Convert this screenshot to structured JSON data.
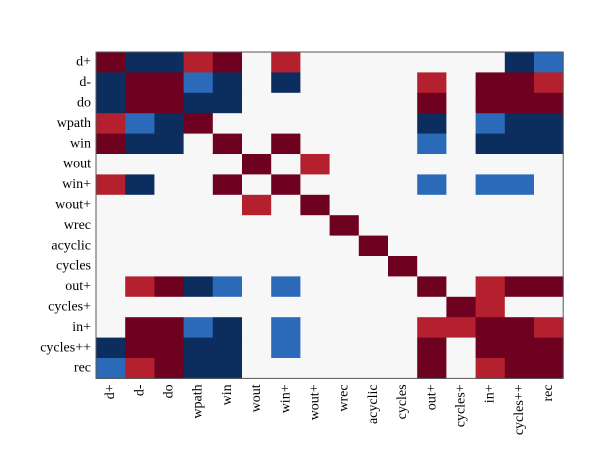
{
  "chart_data": {
    "type": "heatmap",
    "title": "",
    "xlabel": "",
    "ylabel": "",
    "grid": false,
    "legend": "none",
    "rows": [
      "d+",
      "d-",
      "do",
      "wpath",
      "win",
      "wout",
      "win+",
      "wout+",
      "wrec",
      "acyclic",
      "cycles",
      "out+",
      "cycles+",
      "in+",
      "cycles++",
      "rec"
    ],
    "cols": [
      "d+",
      "d-",
      "do",
      "wpath",
      "win",
      "wout",
      "win+",
      "wout+",
      "wrec",
      "acyclic",
      "cycles",
      "out+",
      "cycles+",
      "in+",
      "cycles++",
      "rec"
    ],
    "colors": {
      "dark_red": "#6e0020",
      "red": "#b4202e",
      "blue": "#2a6ab8",
      "dark_blue": "#0c2e5e",
      "empty": "#f7f7f7"
    },
    "values": [
      [
        2,
        -2,
        -2,
        1,
        2,
        0,
        1,
        0,
        0,
        0,
        0,
        0,
        0,
        0,
        -2,
        -1
      ],
      [
        -2,
        2,
        2,
        -1,
        -2,
        0,
        -2,
        0,
        0,
        0,
        0,
        1,
        0,
        2,
        2,
        1
      ],
      [
        -2,
        2,
        2,
        -2,
        -2,
        0,
        0,
        0,
        0,
        0,
        0,
        2,
        0,
        2,
        2,
        2
      ],
      [
        1,
        -1,
        -2,
        2,
        0,
        0,
        0,
        0,
        0,
        0,
        0,
        -2,
        0,
        -1,
        -2,
        -2
      ],
      [
        2,
        -2,
        -2,
        0,
        2,
        0,
        2,
        0,
        0,
        0,
        0,
        -1,
        0,
        -2,
        -2,
        -2
      ],
      [
        0,
        0,
        0,
        0,
        0,
        2,
        0,
        1,
        0,
        0,
        0,
        0,
        0,
        0,
        0,
        0
      ],
      [
        1,
        -2,
        0,
        0,
        2,
        0,
        2,
        0,
        0,
        0,
        0,
        -1,
        0,
        -1,
        -1,
        0
      ],
      [
        0,
        0,
        0,
        0,
        0,
        1,
        0,
        2,
        0,
        0,
        0,
        0,
        0,
        0,
        0,
        0
      ],
      [
        0,
        0,
        0,
        0,
        0,
        0,
        0,
        0,
        2,
        0,
        0,
        0,
        0,
        0,
        0,
        0
      ],
      [
        0,
        0,
        0,
        0,
        0,
        0,
        0,
        0,
        0,
        2,
        0,
        0,
        0,
        0,
        0,
        0
      ],
      [
        0,
        0,
        0,
        0,
        0,
        0,
        0,
        0,
        0,
        0,
        2,
        0,
        0,
        0,
        0,
        0
      ],
      [
        0,
        1,
        2,
        -2,
        -1,
        0,
        -1,
        0,
        0,
        0,
        0,
        2,
        0,
        1,
        2,
        2
      ],
      [
        0,
        0,
        0,
        0,
        0,
        0,
        0,
        0,
        0,
        0,
        0,
        0,
        2,
        1,
        0,
        0
      ],
      [
        0,
        2,
        2,
        -1,
        -2,
        0,
        -1,
        0,
        0,
        0,
        0,
        1,
        1,
        2,
        2,
        1
      ],
      [
        -2,
        2,
        2,
        -2,
        -2,
        0,
        -1,
        0,
        0,
        0,
        0,
        2,
        0,
        2,
        2,
        2
      ],
      [
        -1,
        1,
        2,
        -2,
        -2,
        0,
        0,
        0,
        0,
        0,
        0,
        2,
        0,
        1,
        2,
        2
      ]
    ]
  }
}
